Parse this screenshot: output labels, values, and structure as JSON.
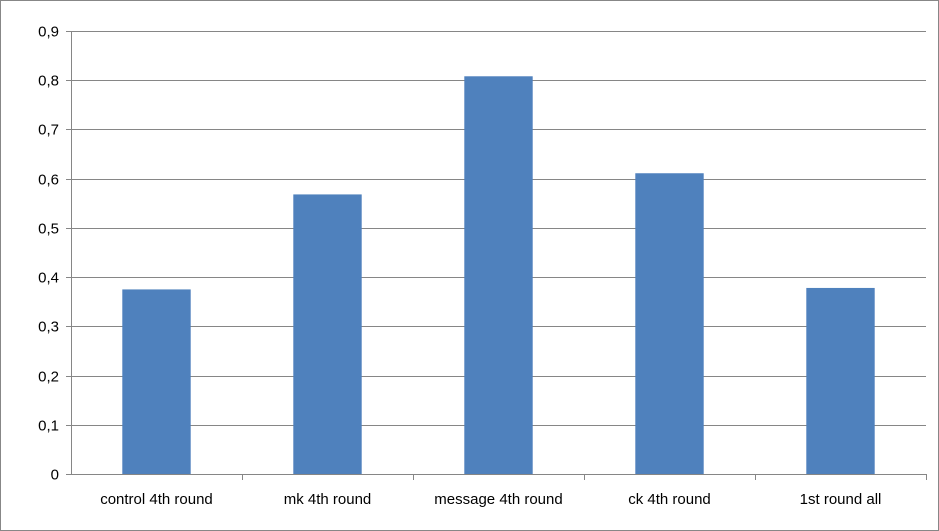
{
  "chart_data": {
    "type": "bar",
    "title": "",
    "xlabel": "",
    "ylabel": "",
    "categories": [
      "control 4th round",
      "mk 4th round",
      "message 4th round",
      "ck 4th round",
      "1st round all"
    ],
    "values": [
      0.375,
      0.568,
      0.808,
      0.611,
      0.378
    ],
    "ylim": [
      0,
      0.9
    ],
    "yticks": [
      0,
      0.1,
      0.2,
      0.3,
      0.4,
      0.5,
      0.6,
      0.7,
      0.8,
      0.9
    ],
    "ytick_labels": [
      "0",
      "0,1",
      "0,2",
      "0,3",
      "0,4",
      "0,5",
      "0,6",
      "0,7",
      "0,8",
      "0,9"
    ],
    "grid": true,
    "legend": "none",
    "bar_color": "#4f81bd",
    "grid_color": "#868686"
  }
}
